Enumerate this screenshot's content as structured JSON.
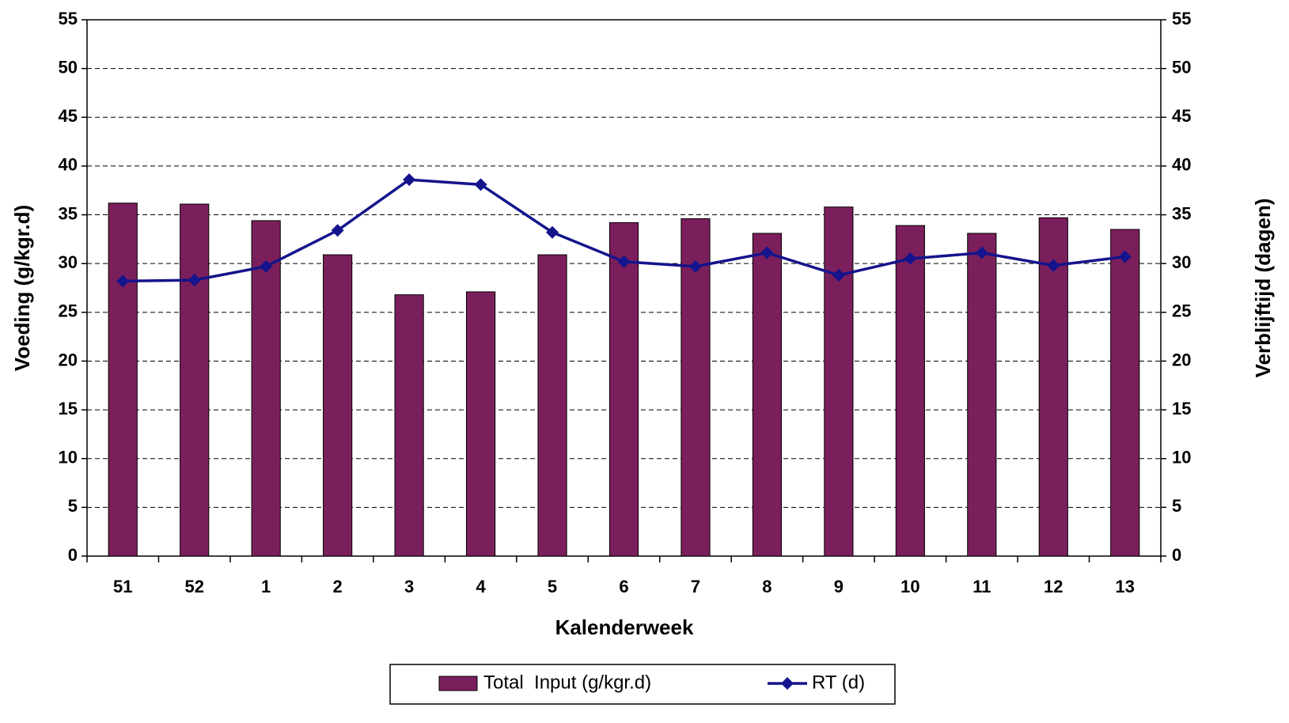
{
  "chart_data": {
    "type": "bar_line",
    "x_label": "Kalenderweek",
    "y_label": "Voeding (g/kgr.d)",
    "y2_label": "Verblijftijd (dagen)",
    "categories": [
      "51",
      "52",
      "1",
      "2",
      "3",
      "4",
      "5",
      "6",
      "7",
      "8",
      "9",
      "10",
      "11",
      "12",
      "13"
    ],
    "series": [
      {
        "name": "Total  Input (g/kgr.d)",
        "type": "bar",
        "color": "#7b1f5c",
        "values": [
          36.2,
          36.1,
          34.4,
          30.9,
          26.8,
          27.1,
          30.9,
          34.2,
          34.6,
          33.1,
          35.8,
          33.9,
          33.1,
          34.7,
          33.5
        ]
      },
      {
        "name": "RT (d)",
        "type": "line",
        "axis": "y2",
        "color": "#14148c",
        "values": [
          28.2,
          28.3,
          29.7,
          33.4,
          38.6,
          38.1,
          33.2,
          30.2,
          29.7,
          31.1,
          28.8,
          30.5,
          31.1,
          29.8,
          30.7
        ]
      }
    ],
    "ylim": [
      0,
      55
    ],
    "yticks": [
      0,
      5,
      10,
      15,
      20,
      25,
      30,
      35,
      40,
      45,
      50,
      55
    ],
    "y2lim": [
      0,
      55
    ],
    "y2ticks": [
      0,
      5,
      10,
      15,
      20,
      25,
      30,
      35,
      40,
      45,
      50,
      55
    ],
    "grid": true,
    "legend": "bottom"
  }
}
